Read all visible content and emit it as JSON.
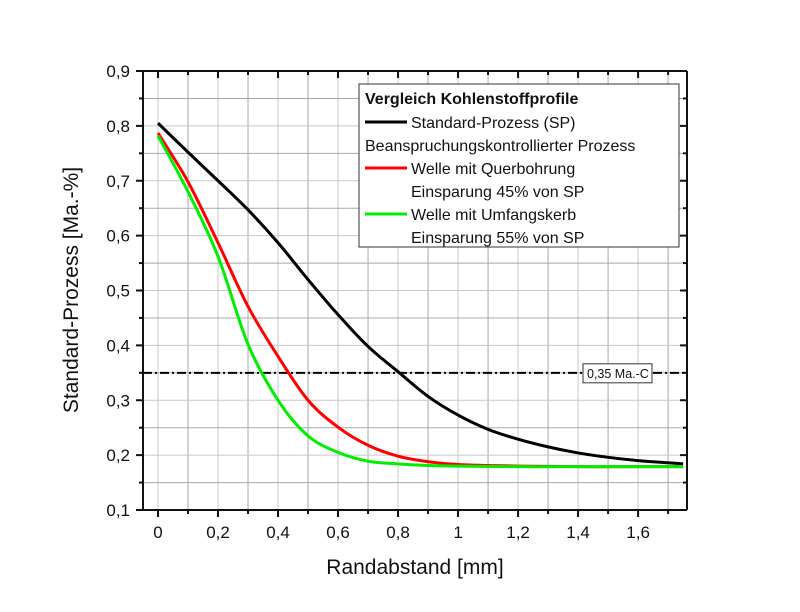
{
  "chart_data": {
    "type": "line",
    "title": "",
    "xlabel": "Randabstand [mm]",
    "ylabel": "Standard-Prozess [Ma.-%]",
    "xlim": [
      -0.05,
      1.763
    ],
    "ylim": [
      0.1,
      0.9
    ],
    "grid": true,
    "x_ticks": [
      0,
      0.2,
      0.4,
      0.6,
      0.8,
      1.0,
      1.2,
      1.4,
      1.6
    ],
    "x_tick_labels": [
      "0",
      "0,2",
      "0,4",
      "0,6",
      "0,8",
      "1",
      "1,2",
      "1,4",
      "1,6"
    ],
    "y_ticks": [
      0.1,
      0.2,
      0.3,
      0.4,
      0.5,
      0.6,
      0.7,
      0.8,
      0.9
    ],
    "y_tick_labels": [
      "0,1",
      "0,2",
      "0,3",
      "0,4",
      "0,5",
      "0,6",
      "0,7",
      "0,8",
      "0,9"
    ],
    "legend": {
      "placement": "top-right",
      "title": "Vergleich Kohlenstoffprofile",
      "entries": [
        {
          "series": 0,
          "label": "Standard-Prozess (SP)"
        },
        {
          "series": null,
          "label": "Beanspruchungskontrollierter Prozess"
        },
        {
          "series": 1,
          "label": "Welle mit Querbohrung"
        },
        {
          "series": null,
          "label": "Einsparung 45% von SP"
        },
        {
          "series": 2,
          "label": "Welle mit Umfangskerb"
        },
        {
          "series": null,
          "label": "Einsparung 55% von SP"
        }
      ]
    },
    "series": [
      {
        "name": "Standard-Prozess (SP)",
        "color": "#000000",
        "x": [
          0,
          0.1,
          0.2,
          0.3,
          0.4,
          0.5,
          0.6,
          0.7,
          0.8,
          0.9,
          1.0,
          1.1,
          1.2,
          1.3,
          1.4,
          1.5,
          1.6,
          1.7,
          1.75
        ],
        "y": [
          0.805,
          0.752,
          0.7,
          0.647,
          0.587,
          0.52,
          0.456,
          0.398,
          0.352,
          0.307,
          0.273,
          0.247,
          0.229,
          0.215,
          0.204,
          0.196,
          0.19,
          0.186,
          0.184
        ]
      },
      {
        "name": "Welle mit Querbohrung",
        "color": "#ff0000",
        "x": [
          0,
          0.1,
          0.2,
          0.3,
          0.4,
          0.5,
          0.6,
          0.7,
          0.8,
          0.9,
          1.0,
          1.2,
          1.4,
          1.6,
          1.75
        ],
        "y": [
          0.787,
          0.698,
          0.587,
          0.471,
          0.38,
          0.3,
          0.251,
          0.218,
          0.198,
          0.188,
          0.183,
          0.18,
          0.179,
          0.179,
          0.179
        ]
      },
      {
        "name": "Welle mit Umfangskerb",
        "color": "#00ee00",
        "x": [
          0,
          0.1,
          0.2,
          0.3,
          0.4,
          0.5,
          0.6,
          0.7,
          0.8,
          0.9,
          1.0,
          1.2,
          1.4,
          1.6,
          1.75
        ],
        "y": [
          0.782,
          0.68,
          0.562,
          0.402,
          0.3,
          0.235,
          0.205,
          0.189,
          0.184,
          0.181,
          0.18,
          0.179,
          0.179,
          0.179,
          0.179
        ]
      }
    ],
    "reference_line": {
      "y": 0.35,
      "style": "dash-dot",
      "color": "#000000",
      "label": "0,35 Ma.-C"
    }
  }
}
